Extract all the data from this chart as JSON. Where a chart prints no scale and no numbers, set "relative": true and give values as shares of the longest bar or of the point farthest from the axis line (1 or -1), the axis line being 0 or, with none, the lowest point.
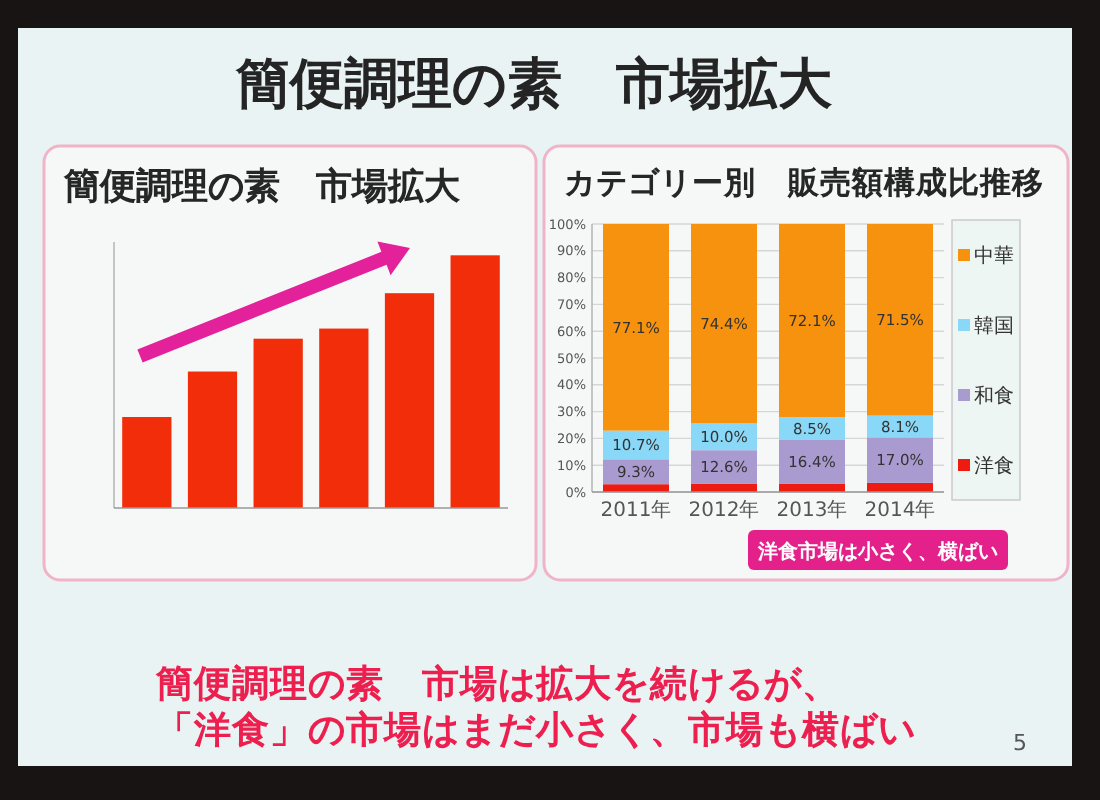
{
  "chart_data": [
    {
      "type": "other",
      "title": "簡便調理の素　市場拡大",
      "annotations": [
        "簡便調理の素　市場は拡大を続けるが、",
        "「洋食」の市場はまだ小さく、市場も横ばい",
        "5"
      ]
    },
    {
      "type": "bar",
      "title": "簡便調理の素　市場拡大",
      "categories": [
        null,
        null,
        null,
        null,
        null,
        null
      ],
      "values": [
        0.36,
        0.54,
        0.67,
        0.71,
        0.85,
        1
      ],
      "color": "#f22d0a",
      "relative": true
    },
    {
      "type": "bar",
      "title": "カテゴリー別　販売額構成比推移",
      "categories": [
        "2011年",
        "2012年",
        "2013年",
        "2014年"
      ],
      "stacked": true,
      "series": [
        {
          "name": "洋食",
          "color": "#ee1c10",
          "values": [
            2.9,
            3.0,
            3.0,
            3.4
          ]
        },
        {
          "name": "和食",
          "color": "#a99bd0",
          "values": [
            9.3,
            12.6,
            16.4,
            17.0
          ],
          "value_labels": [
            "9.3%",
            "12.6%",
            "16.4%",
            "17.0%"
          ]
        },
        {
          "name": "韓国",
          "color": "#8ad8f8",
          "values": [
            10.7,
            10.0,
            8.5,
            8.1
          ],
          "value_labels": [
            "10.7%",
            "10.0%",
            "8.5%",
            "8.1%"
          ]
        },
        {
          "name": "中華",
          "color": "#f7920f",
          "values": [
            77.1,
            74.4,
            72.1,
            71.5
          ],
          "value_labels": [
            "77.1%",
            "74.4%",
            "72.1%",
            "71.5%"
          ]
        }
      ],
      "ylim": [
        0,
        100
      ],
      "yticks": [
        {
          "value": 0,
          "label": "0%"
        },
        {
          "value": 10,
          "label": "10%"
        },
        {
          "value": 20,
          "label": "20%"
        },
        {
          "value": 30,
          "label": "30%"
        },
        {
          "value": 40,
          "label": "40%"
        },
        {
          "value": 50,
          "label": "50%"
        },
        {
          "value": 60,
          "label": "60%"
        },
        {
          "value": 70,
          "label": "70%"
        },
        {
          "value": 80,
          "label": "80%"
        },
        {
          "value": 90,
          "label": "90%"
        },
        {
          "value": 100,
          "label": "100%"
        }
      ],
      "grid": "y",
      "legend": "right",
      "annotations": [
        "洋食市場は小さく、横ばい"
      ]
    }
  ]
}
